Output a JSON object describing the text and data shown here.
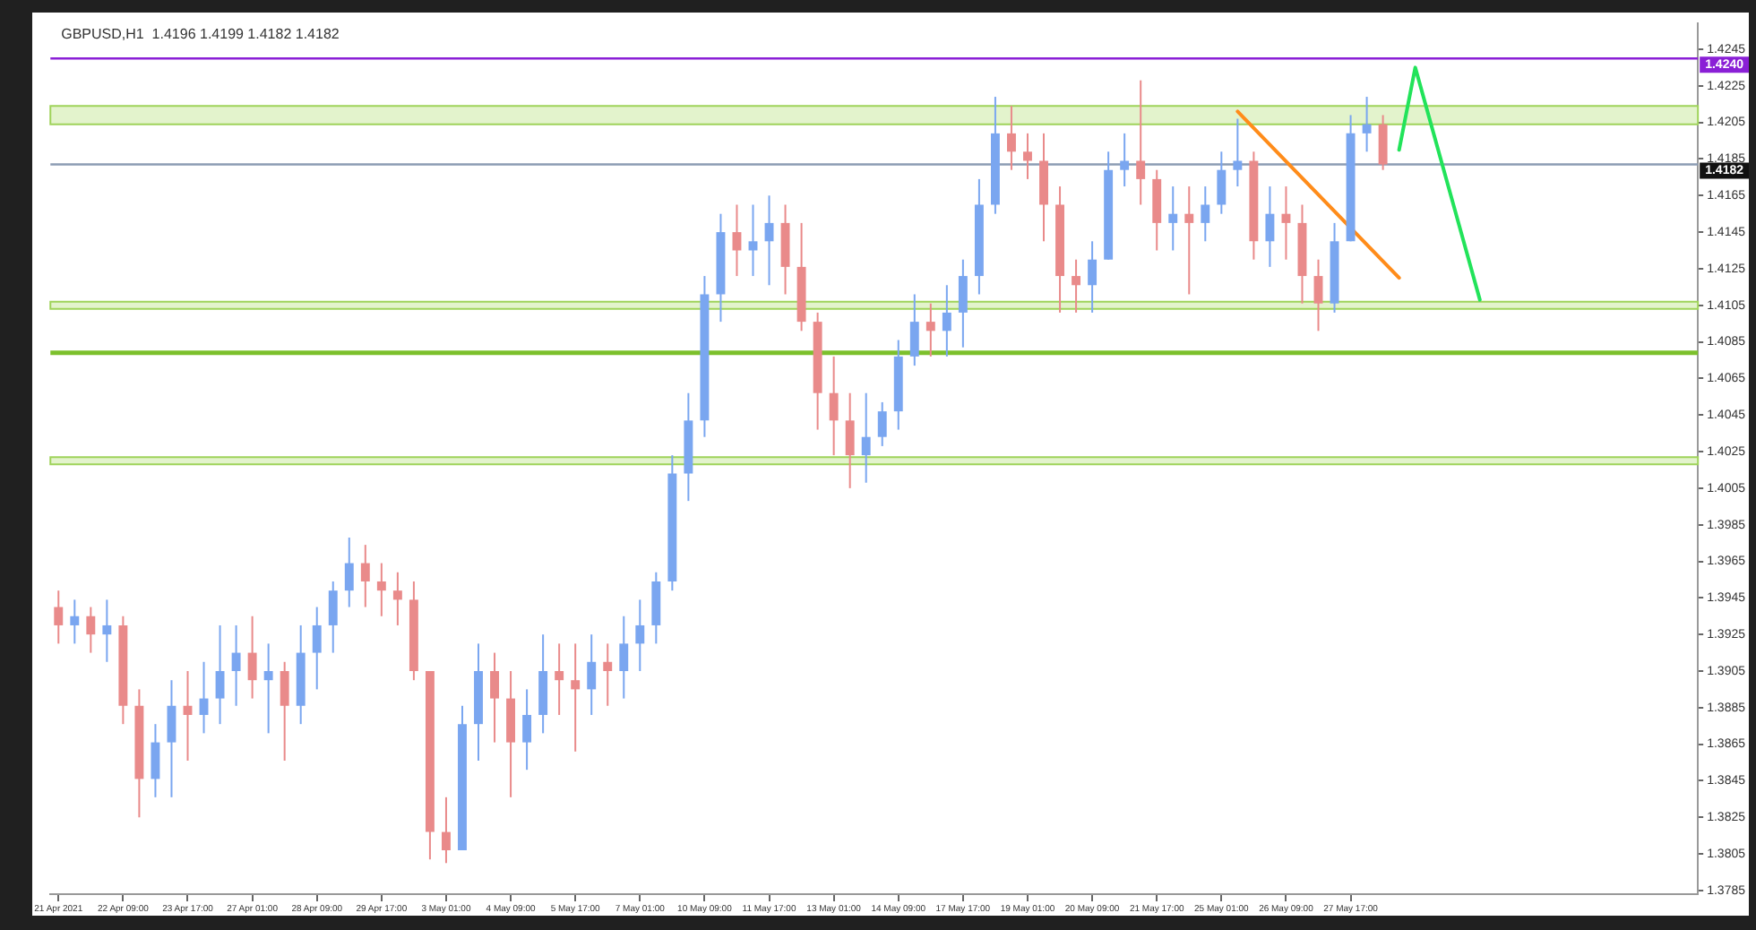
{
  "chart_data": {
    "type": "candlestick",
    "title": "GBPUSD,H1  1.4196 1.4199 1.4182 1.4182",
    "categories": [
      "21 Apr 2021",
      null,
      null,
      null,
      "22 Apr 09:00",
      null,
      null,
      null,
      "23 Apr 17:00",
      null,
      null,
      null,
      "27 Apr 01:00",
      null,
      null,
      null,
      "28 Apr 09:00",
      null,
      null,
      null,
      "29 Apr 17:00",
      null,
      null,
      null,
      "3 May 01:00",
      null,
      null,
      null,
      "4 May 09:00",
      null,
      null,
      null,
      "5 May 17:00",
      null,
      null,
      null,
      "7 May 01:00",
      null,
      null,
      null,
      "10 May 09:00",
      null,
      null,
      null,
      "11 May 17:00",
      null,
      null,
      null,
      "13 May 01:00",
      null,
      null,
      null,
      "14 May 09:00",
      null,
      null,
      null,
      "17 May 17:00",
      null,
      null,
      null,
      "19 May 01:00",
      null,
      null,
      null,
      "20 May 09:00",
      null,
      null,
      null,
      "21 May 17:00",
      null,
      null,
      null,
      "25 May 01:00",
      null,
      null,
      null,
      "26 May 09:00",
      null,
      null,
      null,
      "27 May 17:00",
      null,
      null,
      null,
      null,
      null,
      null,
      null,
      null,
      null,
      null,
      null,
      null,
      null,
      null,
      null,
      null,
      null,
      null,
      null,
      null,
      null
    ],
    "ohlc": [
      [
        1.394,
        1.3949,
        1.392,
        1.393
      ],
      [
        1.393,
        1.3944,
        1.392,
        1.3935
      ],
      [
        1.3935,
        1.394,
        1.3915,
        1.3925
      ],
      [
        1.3925,
        1.3944,
        1.391,
        1.393
      ],
      [
        1.393,
        1.3935,
        1.3876,
        1.3886
      ],
      [
        1.3886,
        1.3895,
        1.3825,
        1.3846
      ],
      [
        1.3846,
        1.3876,
        1.3836,
        1.3866
      ],
      [
        1.3866,
        1.39,
        1.3836,
        1.3886
      ],
      [
        1.3886,
        1.3905,
        1.3856,
        1.3881
      ],
      [
        1.3881,
        1.391,
        1.3871,
        1.389
      ],
      [
        1.389,
        1.393,
        1.3876,
        1.3905
      ],
      [
        1.3905,
        1.393,
        1.3886,
        1.3915
      ],
      [
        1.3915,
        1.3935,
        1.389,
        1.39
      ],
      [
        1.39,
        1.392,
        1.3871,
        1.3905
      ],
      [
        1.3905,
        1.391,
        1.3856,
        1.3886
      ],
      [
        1.3886,
        1.393,
        1.3876,
        1.3915
      ],
      [
        1.3915,
        1.394,
        1.3895,
        1.393
      ],
      [
        1.393,
        1.3954,
        1.3915,
        1.3949
      ],
      [
        1.3949,
        1.3978,
        1.394,
        1.3964
      ],
      [
        1.3964,
        1.3974,
        1.394,
        1.3954
      ],
      [
        1.3954,
        1.3964,
        1.3935,
        1.3949
      ],
      [
        1.3949,
        1.3959,
        1.393,
        1.3944
      ],
      [
        1.3944,
        1.3954,
        1.39,
        1.3905
      ],
      [
        1.3905,
        1.3905,
        1.3802,
        1.3817
      ],
      [
        1.3817,
        1.3836,
        1.38,
        1.3807
      ],
      [
        1.3807,
        1.3886,
        1.3807,
        1.3876
      ],
      [
        1.3876,
        1.392,
        1.3856,
        1.3905
      ],
      [
        1.3905,
        1.3915,
        1.3866,
        1.389
      ],
      [
        1.389,
        1.3905,
        1.3836,
        1.3866
      ],
      [
        1.3866,
        1.3895,
        1.3851,
        1.3881
      ],
      [
        1.3881,
        1.3925,
        1.3871,
        1.3905
      ],
      [
        1.3905,
        1.392,
        1.3881,
        1.39
      ],
      [
        1.39,
        1.392,
        1.3861,
        1.3895
      ],
      [
        1.3895,
        1.3925,
        1.3881,
        1.391
      ],
      [
        1.391,
        1.392,
        1.3886,
        1.3905
      ],
      [
        1.3905,
        1.3935,
        1.389,
        1.392
      ],
      [
        1.392,
        1.3944,
        1.3905,
        1.393
      ],
      [
        1.393,
        1.3959,
        1.392,
        1.3954
      ],
      [
        1.3954,
        1.4023,
        1.3949,
        1.4013
      ],
      [
        1.4013,
        1.4057,
        1.3998,
        1.4042
      ],
      [
        1.4042,
        1.4121,
        1.4033,
        1.4111
      ],
      [
        1.4111,
        1.4155,
        1.4096,
        1.4145
      ],
      [
        1.4145,
        1.416,
        1.4121,
        1.4135
      ],
      [
        1.4135,
        1.416,
        1.4121,
        1.414
      ],
      [
        1.414,
        1.4165,
        1.4116,
        1.415
      ],
      [
        1.415,
        1.416,
        1.4111,
        1.4126
      ],
      [
        1.4126,
        1.415,
        1.4091,
        1.4096
      ],
      [
        1.4096,
        1.4101,
        1.4037,
        1.4057
      ],
      [
        1.4057,
        1.4077,
        1.4023,
        1.4042
      ],
      [
        1.4042,
        1.4057,
        1.4005,
        1.4023
      ],
      [
        1.4023,
        1.4057,
        1.4008,
        1.4033
      ],
      [
        1.4033,
        1.4052,
        1.4028,
        1.4047
      ],
      [
        1.4047,
        1.4086,
        1.4037,
        1.4077
      ],
      [
        1.4077,
        1.4111,
        1.4072,
        1.4096
      ],
      [
        1.4096,
        1.4106,
        1.4077,
        1.4091
      ],
      [
        1.4091,
        1.4116,
        1.4077,
        1.4101
      ],
      [
        1.4101,
        1.413,
        1.4082,
        1.4121
      ],
      [
        1.4121,
        1.4174,
        1.4111,
        1.416
      ],
      [
        1.416,
        1.4219,
        1.4155,
        1.4199
      ],
      [
        1.4199,
        1.4214,
        1.4179,
        1.4189
      ],
      [
        1.4189,
        1.4199,
        1.4174,
        1.4184
      ],
      [
        1.4184,
        1.4199,
        1.414,
        1.416
      ],
      [
        1.416,
        1.417,
        1.4101,
        1.4121
      ],
      [
        1.4121,
        1.413,
        1.4101,
        1.4116
      ],
      [
        1.4116,
        1.414,
        1.4101,
        1.413
      ],
      [
        1.413,
        1.4189,
        1.413,
        1.4179
      ],
      [
        1.4179,
        1.4199,
        1.417,
        1.4184
      ],
      [
        1.4184,
        1.4228,
        1.416,
        1.4174
      ],
      [
        1.4174,
        1.4179,
        1.4135,
        1.415
      ],
      [
        1.415,
        1.417,
        1.4135,
        1.4155
      ],
      [
        1.4155,
        1.417,
        1.4111,
        1.415
      ],
      [
        1.415,
        1.417,
        1.414,
        1.416
      ],
      [
        1.416,
        1.4189,
        1.4155,
        1.4179
      ],
      [
        1.4179,
        1.4207,
        1.417,
        1.4184
      ],
      [
        1.4184,
        1.4189,
        1.413,
        1.414
      ],
      [
        1.414,
        1.417,
        1.4126,
        1.4155
      ],
      [
        1.4155,
        1.417,
        1.413,
        1.415
      ],
      [
        1.415,
        1.416,
        1.4106,
        1.4121
      ],
      [
        1.4121,
        1.413,
        1.4091,
        1.4106
      ],
      [
        1.4106,
        1.415,
        1.4101,
        1.414
      ],
      [
        1.414,
        1.4209,
        1.414,
        1.4199
      ],
      [
        1.4199,
        1.4219,
        1.4189,
        1.4204
      ],
      [
        1.4204,
        1.4209,
        1.4179,
        1.4182
      ],
      null,
      null,
      null,
      null,
      null,
      null,
      null,
      null,
      null,
      null,
      null,
      null,
      null,
      null,
      null,
      null,
      null,
      null,
      null
    ],
    "series": [
      {
        "type": "line",
        "color": "#ff8c1a",
        "values": [
          null,
          null,
          null,
          null,
          null,
          null,
          null,
          null,
          null,
          null,
          null,
          null,
          null,
          null,
          null,
          null,
          null,
          null,
          null,
          null,
          null,
          null,
          null,
          null,
          null,
          null,
          null,
          null,
          null,
          null,
          null,
          null,
          null,
          null,
          null,
          null,
          null,
          null,
          null,
          null,
          null,
          null,
          null,
          null,
          null,
          null,
          null,
          null,
          null,
          null,
          null,
          null,
          null,
          null,
          null,
          null,
          null,
          null,
          null,
          null,
          null,
          null,
          null,
          null,
          null,
          null,
          null,
          null,
          null,
          null,
          null,
          null,
          null,
          1.4211,
          null,
          null,
          null,
          null,
          null,
          null,
          null,
          null,
          null,
          1.412,
          null,
          null,
          null,
          null,
          null,
          null,
          null,
          null,
          null,
          null,
          null,
          null,
          null,
          null,
          null,
          null,
          null,
          null
        ]
      },
      {
        "type": "line",
        "color": "#22e35a",
        "values": [
          null,
          null,
          null,
          null,
          null,
          null,
          null,
          null,
          null,
          null,
          null,
          null,
          null,
          null,
          null,
          null,
          null,
          null,
          null,
          null,
          null,
          null,
          null,
          null,
          null,
          null,
          null,
          null,
          null,
          null,
          null,
          null,
          null,
          null,
          null,
          null,
          null,
          null,
          null,
          null,
          null,
          null,
          null,
          null,
          null,
          null,
          null,
          null,
          null,
          null,
          null,
          null,
          null,
          null,
          null,
          null,
          null,
          null,
          null,
          null,
          null,
          null,
          null,
          null,
          null,
          null,
          null,
          null,
          null,
          null,
          null,
          null,
          null,
          null,
          null,
          null,
          null,
          null,
          null,
          null,
          null,
          null,
          null,
          1.419,
          1.4235,
          null,
          null,
          null,
          1.4108,
          null,
          null,
          null,
          null,
          null,
          null,
          null,
          null,
          null,
          null,
          null,
          null,
          null
        ]
      }
    ],
    "ylim": [
      1.3783,
      1.4259
    ],
    "yticks": [
      1.3785,
      1.3805,
      1.3825,
      1.3845,
      1.3865,
      1.3885,
      1.3905,
      1.3925,
      1.3945,
      1.3965,
      1.3985,
      1.4005,
      1.4025,
      1.4045,
      1.4065,
      1.4085,
      1.4105,
      1.4125,
      1.4145,
      1.4165,
      1.4185,
      1.4205,
      1.4225,
      1.4245
    ],
    "ref_lines": [
      {
        "axis": "y",
        "value": 1.424,
        "label": "1.4240",
        "color": "#8a1fd6"
      },
      {
        "axis": "y",
        "value": 1.4182,
        "label": "1.4182",
        "color": "#8c9db3"
      },
      {
        "axis": "y",
        "value": 1.4079,
        "color": "#7cc02c"
      }
    ],
    "bands": [
      {
        "axis": "y",
        "from": 1.4204,
        "to": 1.4214,
        "color": "#e3f3cc"
      },
      {
        "axis": "y",
        "from": 1.4103,
        "to": 1.4107,
        "color": "#e3f3cc"
      },
      {
        "axis": "y",
        "from": 1.4018,
        "to": 1.4022,
        "color": "#e3f3cc"
      }
    ],
    "grid": false,
    "legend": false
  }
}
